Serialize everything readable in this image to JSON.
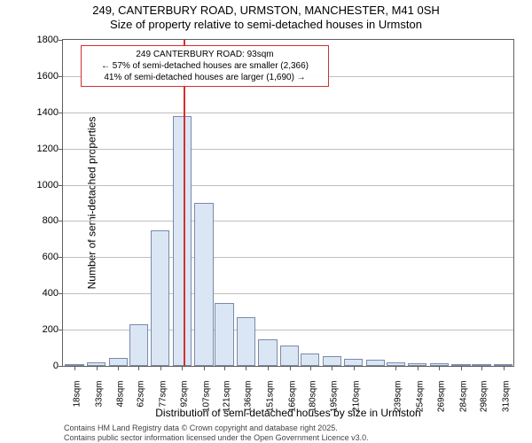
{
  "title": {
    "line1": "249, CANTERBURY ROAD, URMSTON, MANCHESTER, M41 0SH",
    "line2": "Size of property relative to semi-detached houses in Urmston"
  },
  "chart": {
    "type": "histogram",
    "background_color": "#ffffff",
    "plot_border_color": "#5f5f5f",
    "grid_color": "#bfbfbf",
    "bar_fill": "#dbe6f5",
    "bar_border": "#7a8aa8",
    "reference_line_color": "#d23030",
    "reference_x": 93,
    "x_min": 10,
    "x_max": 320,
    "y_min": 0,
    "y_max": 1800,
    "y_ticks": [
      0,
      200,
      400,
      600,
      800,
      1000,
      1200,
      1400,
      1600,
      1800
    ],
    "x_tick_labels": [
      "18sqm",
      "33sqm",
      "48sqm",
      "62sqm",
      "77sqm",
      "92sqm",
      "107sqm",
      "121sqm",
      "136sqm",
      "151sqm",
      "166sqm",
      "180sqm",
      "195sqm",
      "210sqm",
      "239sqm",
      "254sqm",
      "269sqm",
      "284sqm",
      "298sqm",
      "313sqm"
    ],
    "x_tick_positions": [
      18,
      33,
      48,
      62,
      77,
      92,
      107,
      121,
      136,
      151,
      166,
      180,
      195,
      210,
      239,
      254,
      269,
      284,
      298,
      313
    ],
    "bars": [
      {
        "x_center": 18,
        "value": 10
      },
      {
        "x_center": 33,
        "value": 20
      },
      {
        "x_center": 48,
        "value": 45
      },
      {
        "x_center": 62,
        "value": 230
      },
      {
        "x_center": 77,
        "value": 750
      },
      {
        "x_center": 92,
        "value": 1380
      },
      {
        "x_center": 107,
        "value": 900
      },
      {
        "x_center": 121,
        "value": 345
      },
      {
        "x_center": 136,
        "value": 270
      },
      {
        "x_center": 151,
        "value": 145
      },
      {
        "x_center": 166,
        "value": 115
      },
      {
        "x_center": 180,
        "value": 70
      },
      {
        "x_center": 195,
        "value": 55
      },
      {
        "x_center": 210,
        "value": 40
      },
      {
        "x_center": 225,
        "value": 35
      },
      {
        "x_center": 239,
        "value": 18
      },
      {
        "x_center": 254,
        "value": 15
      },
      {
        "x_center": 269,
        "value": 15
      },
      {
        "x_center": 284,
        "value": 10
      },
      {
        "x_center": 298,
        "value": 8
      },
      {
        "x_center": 313,
        "value": 5
      }
    ],
    "bar_width_data_units": 13,
    "annotation": {
      "line1": "249 CANTERBURY ROAD: 93sqm",
      "line2": "← 57% of semi-detached houses are smaller (2,366)",
      "line3": "41% of semi-detached houses are larger (1,690) →",
      "border_color": "#d23030"
    },
    "x_axis_label": "Distribution of semi-detached houses by size in Urmston",
    "y_axis_label": "Number of semi-detached properties",
    "label_fontsize": 12,
    "tick_fontsize": 11
  },
  "footer": {
    "line1": "Contains HM Land Registry data © Crown copyright and database right 2025.",
    "line2": "Contains public sector information licensed under the Open Government Licence v3.0."
  }
}
